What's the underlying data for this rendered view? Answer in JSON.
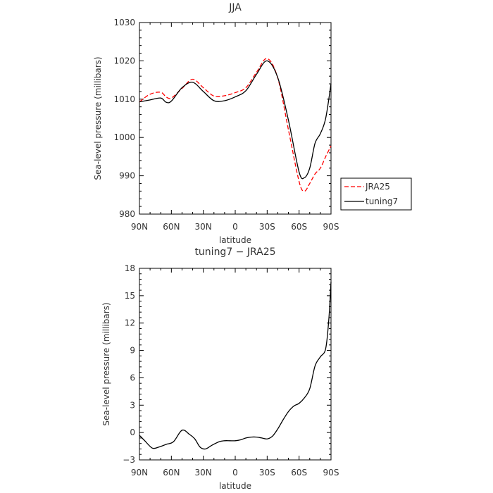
{
  "chart_data": [
    {
      "type": "line",
      "title": "JJA",
      "xlabel": "latitude",
      "ylabel": "Sea-level pressure (millibars)",
      "x_tick_labels": [
        "90N",
        "60N",
        "30N",
        "0",
        "30S",
        "60S",
        "90S"
      ],
      "y_tick_labels": [
        "980",
        "990",
        "1000",
        "1010",
        "1020",
        "1030"
      ],
      "xlim": [
        90,
        -90
      ],
      "ylim": [
        980,
        1030
      ],
      "legend": {
        "placement": "outside-right",
        "entries": [
          "JRA25",
          "tuning7"
        ]
      },
      "series": [
        {
          "name": "JRA25",
          "color": "#ff0000",
          "style": "dashed",
          "x": [
            90,
            80,
            70,
            65,
            60,
            50,
            40,
            30,
            20,
            10,
            0,
            -10,
            -20,
            -30,
            -40,
            -50,
            -60,
            -65,
            -70,
            -75,
            -80,
            -85,
            -90
          ],
          "y": [
            1009.3,
            1011.3,
            1011.8,
            1010.6,
            1010.3,
            1012.8,
            1015.2,
            1013.0,
            1010.8,
            1010.9,
            1011.7,
            1013.0,
            1017.0,
            1020.6,
            1015.5,
            1002.0,
            988.5,
            986.0,
            988.0,
            990.5,
            992.0,
            995.0,
            997.8
          ]
        },
        {
          "name": "tuning7",
          "color": "#000000",
          "style": "solid",
          "x": [
            90,
            80,
            70,
            65,
            60,
            50,
            40,
            30,
            20,
            10,
            0,
            -10,
            -20,
            -30,
            -40,
            -50,
            -60,
            -65,
            -70,
            -75,
            -80,
            -85,
            -90
          ],
          "y": [
            1009.3,
            1009.8,
            1010.3,
            1009.2,
            1009.5,
            1013.0,
            1014.4,
            1012.0,
            1009.6,
            1009.6,
            1010.6,
            1012.2,
            1016.5,
            1020.0,
            1015.6,
            1004.5,
            991.0,
            989.5,
            992.0,
            998.5,
            1001.0,
            1005.0,
            1014.0
          ]
        }
      ]
    },
    {
      "type": "line",
      "title": "tuning7 − JRA25",
      "xlabel": "latitude",
      "ylabel": "Sea-level pressure (millibars)",
      "x_tick_labels": [
        "90N",
        "60N",
        "30N",
        "0",
        "30S",
        "60S",
        "90S"
      ],
      "y_tick_labels": [
        "−3",
        "0",
        "3",
        "6",
        "9",
        "12",
        "15",
        "18"
      ],
      "xlim": [
        90,
        -90
      ],
      "ylim": [
        -3,
        18
      ],
      "series": [
        {
          "color": "#000000",
          "style": "solid",
          "x": [
            90,
            85,
            78,
            72,
            65,
            58,
            50,
            43,
            38,
            33,
            28,
            22,
            15,
            10,
            5,
            0,
            -5,
            -10,
            -15,
            -20,
            -25,
            -30,
            -35,
            -40,
            -45,
            -50,
            -55,
            -60,
            -65,
            -70,
            -75,
            -80,
            -85,
            -88,
            -90
          ],
          "y": [
            -0.3,
            -0.9,
            -1.7,
            -1.6,
            -1.3,
            -1.0,
            0.25,
            -0.2,
            -0.7,
            -1.6,
            -1.8,
            -1.4,
            -1.0,
            -0.9,
            -0.9,
            -0.9,
            -0.8,
            -0.6,
            -0.5,
            -0.5,
            -0.6,
            -0.7,
            -0.4,
            0.4,
            1.4,
            2.3,
            2.9,
            3.2,
            3.8,
            4.8,
            7.3,
            8.3,
            9.2,
            12.5,
            16.5
          ]
        }
      ]
    }
  ]
}
